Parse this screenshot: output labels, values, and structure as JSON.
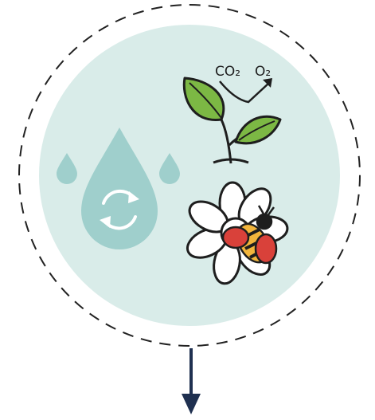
{
  "labels": {
    "input": "CO₂",
    "output": "O₂"
  }
}
